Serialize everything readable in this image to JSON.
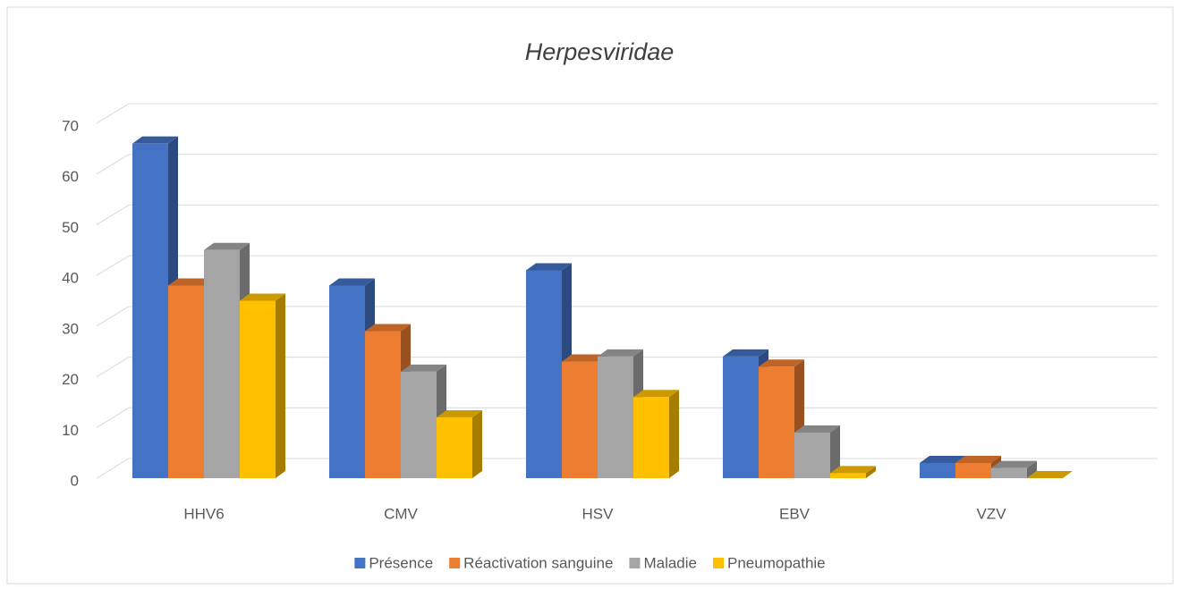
{
  "chart_data": {
    "type": "bar3d",
    "title": "Herpesviridae",
    "categories": [
      "HHV6",
      "CMV",
      "HSV",
      "EBV",
      "VZV"
    ],
    "series": [
      {
        "name": "Présence",
        "color": "#4472c4",
        "values": [
          66,
          38,
          41,
          24,
          3
        ]
      },
      {
        "name": "Réactivation sanguine",
        "color": "#ed7d31",
        "values": [
          38,
          29,
          23,
          22,
          3
        ]
      },
      {
        "name": "Maladie",
        "color": "#a5a5a5",
        "values": [
          45,
          21,
          24,
          9,
          2
        ]
      },
      {
        "name": "Pneumopathie",
        "color": "#ffc000",
        "values": [
          35,
          12,
          16,
          1,
          0
        ]
      }
    ],
    "ylim": [
      0,
      70
    ],
    "yticks": [
      0,
      10,
      20,
      30,
      40,
      50,
      60,
      70
    ],
    "grid": true,
    "legend": "bottom"
  }
}
